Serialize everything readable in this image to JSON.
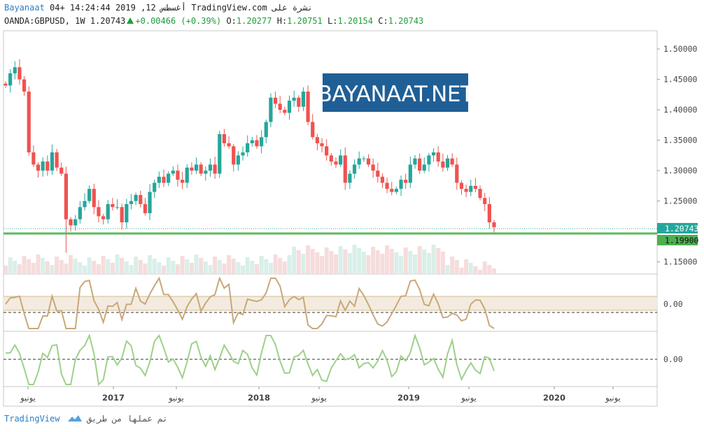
{
  "header": {
    "line1": {
      "author": "Bayanaat",
      "datetime": "04+ 14:24:44 2019 ,12 أغسطس",
      "publisher": "TradingView.com نشرة على"
    },
    "line2": {
      "symbol": "OANDA:GBPUSD, 1W 1.20743",
      "change": "+0.00466 (+0.39%)",
      "o_label": "O:",
      "o": "1.20277",
      "h_label": "H:",
      "h": "1.20751",
      "l_label": "L:",
      "l": "1.20154",
      "c_label": "C:",
      "c": "1.20743"
    }
  },
  "watermark": "BAYANAAT.NET",
  "price_labels": {
    "last": "1.20743",
    "support": "1.19900",
    "ind1_zero": "0.00",
    "ind2_zero": "0.00"
  },
  "footer": {
    "text": "تم عملها من طريق",
    "brand": "TradingView"
  },
  "colors": {
    "up": "#26a69a",
    "down": "#ef5350",
    "support_line": "#5cb85c",
    "last_label_bg": "#26a69a",
    "support_label_bg": "#4caf50",
    "indicator1": "#c8a878",
    "indicator1_band": "#f3ebdf",
    "indicator2": "#9ed08a",
    "watermark_bg": "#1f5f96"
  },
  "chart_data": {
    "type": "candlestick",
    "symbol": "OANDA:GBPUSD",
    "interval": "1W",
    "y_range": [
      1.13,
      1.53
    ],
    "y_ticks": [
      "1.50000",
      "1.45000",
      "1.40000",
      "1.35000",
      "1.30000",
      "1.25000",
      "1.15000"
    ],
    "x_labels": [
      "يونيو",
      "2017",
      "يونيو",
      "2018",
      "يونيو",
      "2019",
      "يونيو",
      "2020",
      "يونيو"
    ],
    "last_price": 1.20743,
    "support_level": 1.199,
    "close_path": [
      1.44,
      1.46,
      1.47,
      1.45,
      1.43,
      1.33,
      1.31,
      1.3,
      1.315,
      1.3,
      1.33,
      1.305,
      1.295,
      1.22,
      1.21,
      1.22,
      1.24,
      1.25,
      1.27,
      1.24,
      1.225,
      1.22,
      1.245,
      1.24,
      1.24,
      1.215,
      1.245,
      1.25,
      1.26,
      1.245,
      1.23,
      1.265,
      1.28,
      1.29,
      1.28,
      1.295,
      1.3,
      1.285,
      1.28,
      1.305,
      1.3,
      1.31,
      1.295,
      1.3,
      1.31,
      1.295,
      1.36,
      1.345,
      1.34,
      1.31,
      1.325,
      1.33,
      1.345,
      1.35,
      1.34,
      1.355,
      1.38,
      1.42,
      1.41,
      1.4,
      1.395,
      1.415,
      1.42,
      1.405,
      1.43,
      1.38,
      1.355,
      1.345,
      1.34,
      1.325,
      1.315,
      1.31,
      1.325,
      1.28,
      1.295,
      1.31,
      1.32,
      1.32,
      1.31,
      1.3,
      1.29,
      1.28,
      1.27,
      1.265,
      1.27,
      1.285,
      1.28,
      1.31,
      1.32,
      1.3,
      1.31,
      1.325,
      1.33,
      1.315,
      1.305,
      1.32,
      1.31,
      1.28,
      1.27,
      1.265,
      1.275,
      1.27,
      1.255,
      1.245,
      1.215,
      1.207
    ]
  }
}
